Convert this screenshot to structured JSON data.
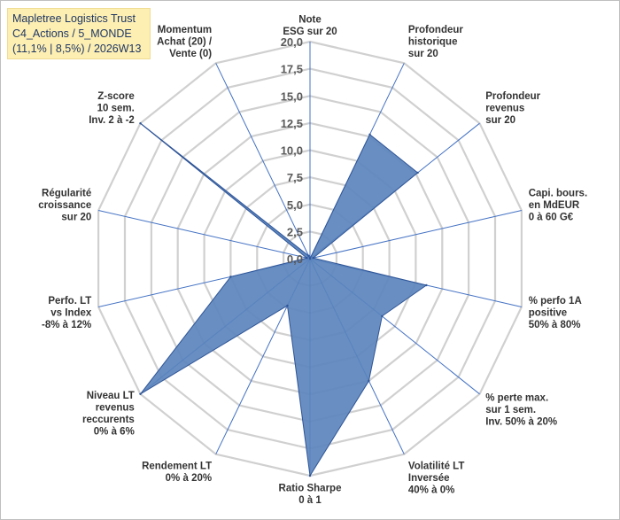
{
  "header": {
    "line1": "Mapletree Logistics Trust",
    "line2": "C4_Actions / 5_MONDE",
    "line3": "(11,1% | 8,5%) / 2026W13"
  },
  "chart_data": {
    "type": "radar",
    "max": 20,
    "ticks": [
      "0,0",
      "2,5",
      "5,0",
      "7,5",
      "10,0",
      "12,5",
      "15,0",
      "17,5",
      "20,0"
    ],
    "axes": [
      {
        "label": [
          "Note",
          "ESG sur 20"
        ],
        "value": 0
      },
      {
        "label": [
          "Profondeur",
          "historique",
          "sur 20"
        ],
        "value": 12.7
      },
      {
        "label": [
          "Profondeur",
          "revenus",
          "sur 20"
        ],
        "value": 12.7
      },
      {
        "label": [
          "Capi. bours.",
          "en MdEUR",
          "0 à 60 G€"
        ],
        "value": 0.3
      },
      {
        "label": [
          "% perfo 1A",
          "positive",
          "50% à 80%"
        ],
        "value": 11.0
      },
      {
        "label": [
          "% perte max.",
          "sur 1 sem.",
          "Inv. 50% à 20%"
        ],
        "value": 8.5
      },
      {
        "label": [
          "Volatilité LT",
          "Inversée",
          "40% à 0%"
        ],
        "value": 12.5
      },
      {
        "label": [
          "Ratio Sharpe",
          "0 à 1"
        ],
        "value": 20.0
      },
      {
        "label": [
          "Rendement LT",
          "0% à 20%"
        ],
        "value": 4.8
      },
      {
        "label": [
          "Niveau LT",
          "revenus",
          "reccurents",
          "0% à 6%"
        ],
        "value": 20.0
      },
      {
        "label": [
          "Perfo. LT",
          "vs Index",
          "-8% à 12%"
        ],
        "value": 7.5
      },
      {
        "label": [
          "Régularité",
          "croissance",
          "sur 20"
        ],
        "value": 0.3
      },
      {
        "label": [
          "Z-score",
          "10 sem.",
          "Inv. 2 à -2"
        ],
        "value": 20.0
      },
      {
        "label": [
          "Momentum",
          "Achat (20) /",
          "Vente (0)"
        ],
        "value": 0.3
      }
    ],
    "colors": {
      "fill": "#5b84bd",
      "stroke": "#2f5597",
      "grid": "#d0d0d0",
      "spoke": "#4472c4",
      "title_bg": "#fdeeb2"
    }
  }
}
